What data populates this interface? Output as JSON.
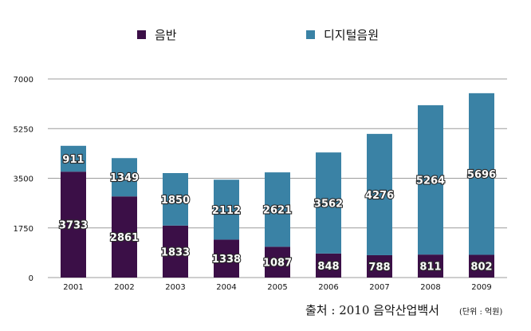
{
  "chart_data": {
    "type": "bar",
    "stacked": true,
    "categories": [
      "2001",
      "2002",
      "2003",
      "2004",
      "2005",
      "2006",
      "2007",
      "2008",
      "2009"
    ],
    "series": [
      {
        "name": "음반",
        "color": "#3b0f47",
        "values": [
          3733,
          2861,
          1833,
          1338,
          1087,
          848,
          788,
          811,
          802
        ]
      },
      {
        "name": "디지털음원",
        "color": "#3a82a5",
        "values": [
          911,
          1349,
          1850,
          2112,
          2621,
          3562,
          4276,
          5264,
          5696
        ]
      }
    ],
    "ylim": [
      0,
      7000
    ],
    "yticks": [
      "0",
      "1750",
      "3500",
      "5250",
      "7000"
    ],
    "grid": true,
    "legend_position": "top-center"
  },
  "source": {
    "text": "출처 : 2010 음악산업백서",
    "unit": "(단위 : 억원)"
  }
}
